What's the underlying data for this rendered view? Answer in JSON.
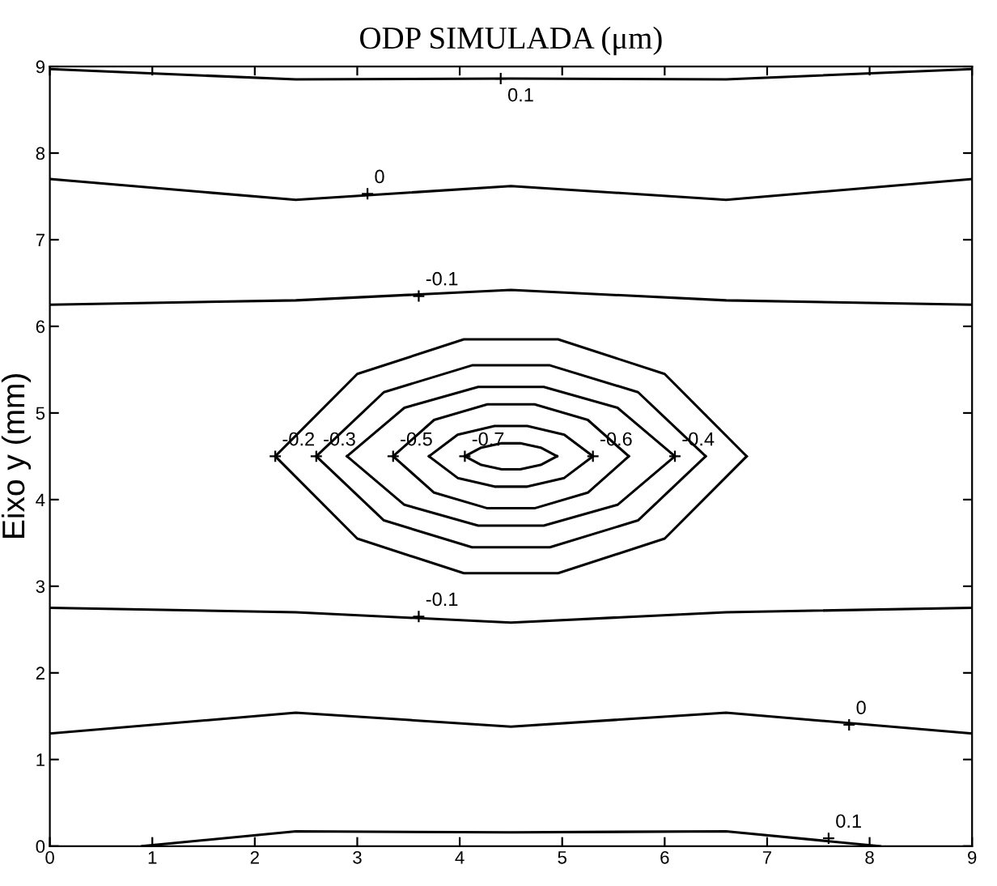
{
  "chart_data": {
    "type": "line",
    "title": "ODP SIMULADA (μm)",
    "ylabel": "Eixo y (mm)",
    "xlim": [
      0,
      9
    ],
    "ylim": [
      0,
      9
    ],
    "xticks": [
      0,
      1,
      2,
      3,
      4,
      5,
      6,
      7,
      8,
      9
    ],
    "yticks": [
      0,
      1,
      2,
      3,
      4,
      5,
      6,
      7,
      8,
      9
    ],
    "grid": false,
    "legend": false,
    "marker": "none",
    "line_style": "solid",
    "series": [
      {
        "color": "#000000",
        "x": [
          0,
          2.4,
          4.5,
          6.6,
          9
        ],
        "values": [
          8.97,
          8.85,
          8.86,
          8.85,
          8.97
        ]
      },
      {
        "color": "#000000",
        "x": [
          0,
          2.4,
          4.5,
          6.6,
          9
        ],
        "values": [
          7.7,
          7.46,
          7.62,
          7.46,
          7.7
        ]
      },
      {
        "color": "#000000",
        "x": [
          0,
          2.4,
          4.5,
          6.6,
          9
        ],
        "values": [
          6.25,
          6.3,
          6.42,
          6.3,
          6.25
        ]
      },
      {
        "color": "#000000",
        "x": [
          2.2,
          3.0,
          4.04,
          4.96,
          6.0,
          6.8
        ],
        "values": [
          4.5,
          5.45,
          5.85,
          5.85,
          5.45,
          4.5
        ]
      },
      {
        "color": "#000000",
        "x": [
          2.2,
          3.0,
          4.04,
          4.96,
          6.0,
          6.8
        ],
        "values": [
          4.5,
          3.55,
          3.15,
          3.15,
          3.55,
          4.5
        ]
      },
      {
        "color": "#000000",
        "x": [
          2.6,
          3.26,
          4.12,
          4.88,
          5.74,
          6.4
        ],
        "values": [
          4.5,
          5.24,
          5.55,
          5.55,
          5.24,
          4.5
        ]
      },
      {
        "color": "#000000",
        "x": [
          2.6,
          3.26,
          4.12,
          4.88,
          5.74,
          6.4
        ],
        "values": [
          4.5,
          3.76,
          3.45,
          3.45,
          3.76,
          4.5
        ]
      },
      {
        "color": "#000000",
        "x": [
          2.9,
          3.46,
          4.18,
          4.82,
          5.54,
          6.1
        ],
        "values": [
          4.5,
          5.06,
          5.3,
          5.3,
          5.06,
          4.5
        ]
      },
      {
        "color": "#000000",
        "x": [
          2.9,
          3.46,
          4.18,
          4.82,
          5.54,
          6.1
        ],
        "values": [
          4.5,
          3.94,
          3.7,
          3.7,
          3.94,
          4.5
        ]
      },
      {
        "color": "#000000",
        "x": [
          3.35,
          3.75,
          4.27,
          4.73,
          5.25,
          5.65
        ],
        "values": [
          4.5,
          4.92,
          5.1,
          5.1,
          4.92,
          4.5
        ]
      },
      {
        "color": "#000000",
        "x": [
          3.35,
          3.75,
          4.27,
          4.73,
          5.25,
          5.65
        ],
        "values": [
          4.5,
          4.08,
          3.9,
          3.9,
          4.08,
          4.5
        ]
      },
      {
        "color": "#000000",
        "x": [
          3.7,
          3.98,
          4.34,
          4.66,
          5.02,
          5.3
        ],
        "values": [
          4.5,
          4.75,
          4.85,
          4.85,
          4.75,
          4.5
        ]
      },
      {
        "color": "#000000",
        "x": [
          3.7,
          3.98,
          4.34,
          4.66,
          5.02,
          5.3
        ],
        "values": [
          4.5,
          4.25,
          4.15,
          4.15,
          4.25,
          4.5
        ]
      },
      {
        "color": "#000000",
        "x": [
          4.05,
          4.21,
          4.41,
          4.59,
          4.79,
          4.95
        ],
        "values": [
          4.5,
          4.6,
          4.65,
          4.65,
          4.6,
          4.5
        ]
      },
      {
        "color": "#000000",
        "x": [
          4.05,
          4.21,
          4.41,
          4.59,
          4.79,
          4.95
        ],
        "values": [
          4.5,
          4.4,
          4.35,
          4.35,
          4.4,
          4.5
        ]
      },
      {
        "color": "#000000",
        "x": [
          0,
          2.4,
          4.5,
          6.6,
          9
        ],
        "values": [
          2.75,
          2.7,
          2.58,
          2.7,
          2.75
        ]
      },
      {
        "color": "#000000",
        "x": [
          0,
          2.4,
          4.5,
          6.6,
          9
        ],
        "values": [
          1.3,
          1.54,
          1.38,
          1.54,
          1.3
        ]
      },
      {
        "color": "#000000",
        "x": [
          0.9,
          2.4,
          4.5,
          6.6,
          8.1
        ],
        "values": [
          0.0,
          0.17,
          0.16,
          0.17,
          0.0
        ]
      }
    ],
    "annotations": [
      {
        "text": "0.1",
        "x": 4.4,
        "y": 8.86
      },
      {
        "text": "0",
        "x": 3.1,
        "y": 7.53
      },
      {
        "text": "-0.1",
        "x": 3.6,
        "y": 6.35
      },
      {
        "text": "-0.2",
        "x": 2.2,
        "y": 4.5
      },
      {
        "text": "-0.3",
        "x": 2.6,
        "y": 4.5
      },
      {
        "text": "-0.5",
        "x": 3.35,
        "y": 4.5
      },
      {
        "text": "-0.7",
        "x": 4.05,
        "y": 4.5
      },
      {
        "text": "-0.6",
        "x": 5.3,
        "y": 4.5
      },
      {
        "text": "-0.4",
        "x": 6.1,
        "y": 4.5
      },
      {
        "text": "-0.1",
        "x": 3.6,
        "y": 2.65
      },
      {
        "text": "0",
        "x": 7.8,
        "y": 1.4
      },
      {
        "text": "0.1",
        "x": 7.6,
        "y": 0.09
      }
    ]
  }
}
